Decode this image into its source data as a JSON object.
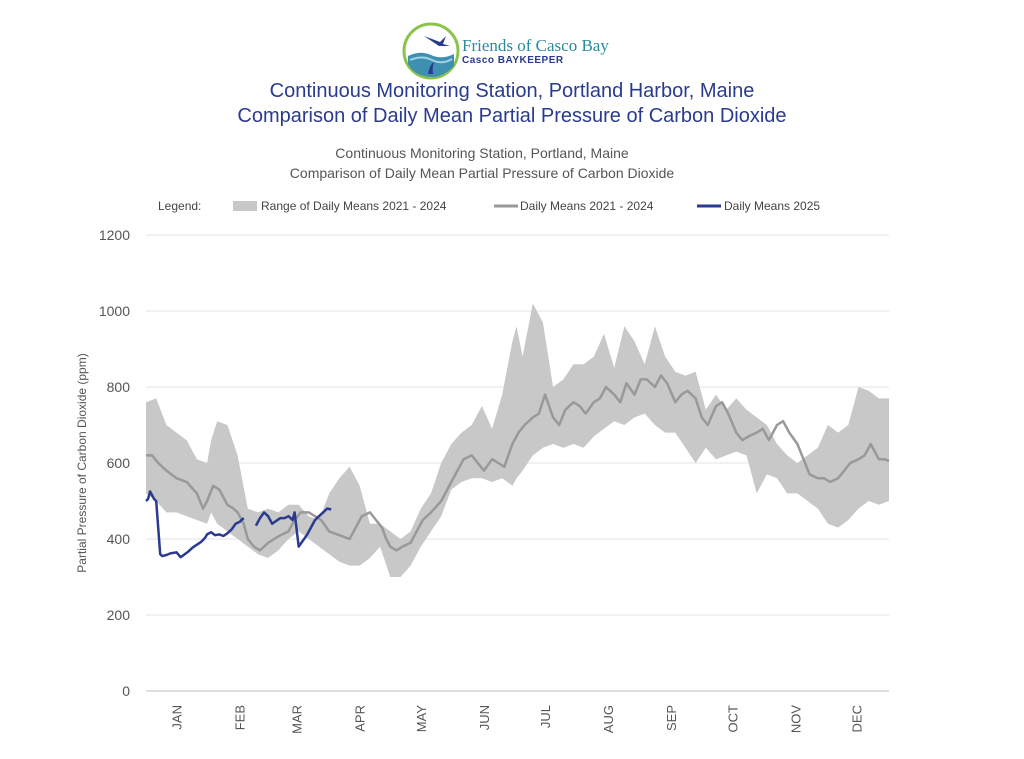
{
  "logo": {
    "icon": "heron-over-water-icon",
    "name": "Friends of Casco Bay",
    "program": "Casco BAYKEEPER"
  },
  "title_line1": "Continuous Monitoring Station, Portland Harbor, Maine",
  "title_line2": "Comparison of Daily Mean Partial Pressure of Carbon Dioxide",
  "subtitle_line1": "Continuous Monitoring Station, Portland, Maine",
  "subtitle_line2": "Comparison of Daily Mean Partial Pressure of Carbon Dioxide",
  "chart_data": {
    "type": "line",
    "ylabel": "Partial Pressure of Carbon Dioxide (ppm)",
    "xlabel": "",
    "ylim": [
      0,
      1200
    ],
    "yticks": [
      0,
      200,
      400,
      600,
      800,
      1000,
      1200
    ],
    "xlim": [
      0,
      365
    ],
    "month_labels": [
      "JAN",
      "FEB",
      "MAR",
      "APR",
      "MAY",
      "JUN",
      "JUL",
      "AUG",
      "SEP",
      "OCT",
      "NOV",
      "DEC"
    ],
    "month_label_days": [
      15,
      46,
      74,
      105,
      135,
      166,
      196,
      227,
      258,
      288,
      319,
      349
    ],
    "grid": true,
    "legend_title": "Legend:",
    "legend_position": "top",
    "series": [
      {
        "name": "Range of Daily Means 2021 - 2024",
        "kind": "band",
        "color": "#c8c8c8",
        "x": [
          0,
          5,
          10,
          15,
          20,
          25,
          30,
          32,
          35,
          40,
          45,
          50,
          55,
          60,
          65,
          70,
          75,
          80,
          85,
          90,
          95,
          100,
          105,
          110,
          115,
          120,
          125,
          130,
          135,
          140,
          145,
          150,
          155,
          160,
          165,
          170,
          175,
          180,
          182,
          185,
          190,
          195,
          200,
          205,
          210,
          215,
          220,
          225,
          230,
          235,
          240,
          245,
          250,
          255,
          260,
          265,
          270,
          275,
          280,
          285,
          290,
          295,
          300,
          305,
          310,
          315,
          320,
          325,
          330,
          335,
          340,
          345,
          350,
          355,
          360,
          365
        ],
        "low": [
          520,
          500,
          470,
          470,
          460,
          450,
          440,
          470,
          440,
          420,
          400,
          380,
          360,
          350,
          370,
          400,
          420,
          400,
          380,
          360,
          340,
          330,
          330,
          350,
          380,
          300,
          300,
          330,
          380,
          420,
          460,
          530,
          550,
          560,
          560,
          550,
          560,
          540,
          560,
          580,
          620,
          640,
          650,
          640,
          650,
          640,
          670,
          690,
          710,
          700,
          720,
          730,
          700,
          680,
          680,
          640,
          600,
          640,
          610,
          620,
          630,
          620,
          520,
          570,
          560,
          520,
          520,
          500,
          480,
          440,
          430,
          450,
          480,
          500,
          490,
          500
        ],
        "high": [
          760,
          770,
          700,
          680,
          660,
          610,
          600,
          660,
          710,
          700,
          620,
          480,
          470,
          480,
          470,
          490,
          490,
          460,
          450,
          520,
          560,
          590,
          540,
          440,
          440,
          420,
          400,
          420,
          480,
          520,
          600,
          650,
          680,
          700,
          750,
          690,
          780,
          920,
          960,
          880,
          1020,
          970,
          800,
          820,
          860,
          860,
          880,
          940,
          850,
          960,
          920,
          860,
          960,
          880,
          840,
          830,
          840,
          740,
          780,
          740,
          770,
          740,
          720,
          700,
          650,
          620,
          600,
          620,
          640,
          700,
          680,
          700,
          800,
          790,
          770,
          770
        ]
      },
      {
        "name": "Daily Means 2021 - 2024",
        "kind": "line",
        "color": "#999999",
        "x": [
          0,
          3,
          6,
          10,
          15,
          20,
          25,
          28,
          30,
          33,
          36,
          40,
          43,
          45,
          48,
          50,
          53,
          56,
          60,
          63,
          66,
          70,
          73,
          76,
          80,
          83,
          86,
          90,
          95,
          100,
          103,
          106,
          110,
          113,
          116,
          118,
          120,
          123,
          126,
          130,
          133,
          136,
          140,
          145,
          150,
          153,
          156,
          160,
          163,
          166,
          170,
          173,
          176,
          180,
          183,
          186,
          190,
          193,
          196,
          200,
          203,
          206,
          210,
          213,
          216,
          220,
          223,
          226,
          230,
          233,
          236,
          240,
          243,
          246,
          250,
          253,
          256,
          260,
          263,
          266,
          270,
          273,
          276,
          280,
          283,
          286,
          290,
          293,
          296,
          300,
          303,
          306,
          310,
          313,
          316,
          320,
          323,
          326,
          330,
          333,
          336,
          340,
          343,
          346,
          350,
          353,
          356,
          360,
          363,
          365
        ],
        "y": [
          620,
          620,
          600,
          580,
          560,
          550,
          520,
          480,
          500,
          540,
          530,
          490,
          480,
          470,
          440,
          400,
          380,
          370,
          390,
          400,
          410,
          420,
          450,
          470,
          470,
          460,
          450,
          420,
          410,
          400,
          430,
          460,
          470,
          450,
          430,
          400,
          380,
          370,
          380,
          390,
          420,
          450,
          470,
          500,
          550,
          580,
          610,
          620,
          600,
          580,
          610,
          600,
          590,
          650,
          680,
          700,
          720,
          730,
          780,
          720,
          700,
          740,
          760,
          750,
          730,
          760,
          770,
          800,
          780,
          760,
          810,
          780,
          820,
          820,
          800,
          830,
          810,
          760,
          780,
          790,
          770,
          720,
          700,
          750,
          760,
          730,
          680,
          660,
          670,
          680,
          690,
          660,
          700,
          710,
          680,
          650,
          610,
          570,
          560,
          560,
          550,
          560,
          580,
          600,
          610,
          620,
          650,
          610,
          610,
          605
        ]
      },
      {
        "name": "Daily Means 2025",
        "kind": "line",
        "color": "#2a3b8f",
        "segments": [
          {
            "x": [
              0,
              1,
              2,
              3,
              4,
              5,
              6,
              7,
              8,
              10,
              12,
              15,
              17,
              19,
              21,
              23,
              25,
              27,
              29,
              30,
              32,
              34,
              36,
              38,
              40,
              42,
              44,
              46,
              48
            ],
            "y": [
              500,
              505,
              525,
              515,
              505,
              500,
              430,
              360,
              355,
              358,
              362,
              365,
              352,
              360,
              368,
              378,
              385,
              392,
              403,
              412,
              418,
              410,
              412,
              408,
              415,
              425,
              440,
              445,
              455
            ]
          },
          {
            "x": [
              54,
              56,
              58,
              60,
              62,
              64,
              66,
              68,
              70,
              72,
              73,
              75,
              77,
              79,
              81,
              83,
              85,
              87,
              89,
              91
            ],
            "y": [
              435,
              455,
              470,
              460,
              440,
              448,
              455,
              455,
              460,
              450,
              470,
              380,
              395,
              410,
              430,
              450,
              460,
              470,
              480,
              478
            ]
          }
        ]
      }
    ]
  }
}
